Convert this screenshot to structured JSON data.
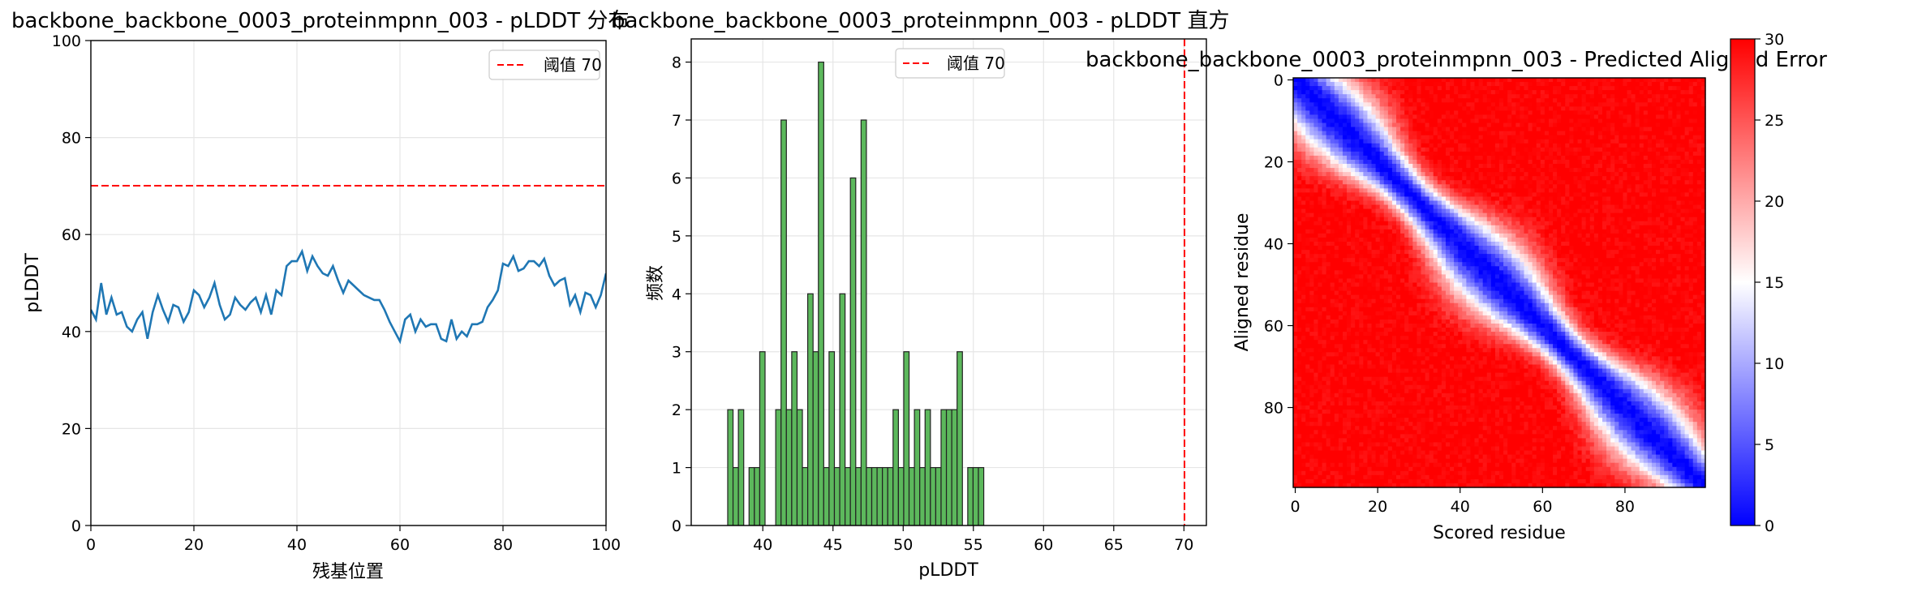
{
  "chart_data": [
    {
      "type": "line",
      "title": "backbone_backbone_0003_proteinmpnn_003 - pLDDT 分布",
      "xlabel": "残基位置",
      "ylabel": "pLDDT",
      "xlim": [
        0,
        100
      ],
      "ylim": [
        0,
        100
      ],
      "xticks": [
        0,
        20,
        40,
        60,
        80,
        100
      ],
      "yticks": [
        0,
        20,
        40,
        60,
        80,
        100
      ],
      "grid": true,
      "legend": {
        "position": "top-right",
        "entries": [
          {
            "label": "阈值 70",
            "color": "#ff0000",
            "style": "dashed"
          }
        ]
      },
      "threshold": 70,
      "series": [
        {
          "color": "#1f77b4",
          "x": [
            0,
            1,
            2,
            3,
            4,
            5,
            6,
            7,
            8,
            9,
            10,
            11,
            12,
            13,
            14,
            15,
            16,
            17,
            18,
            19,
            20,
            21,
            22,
            23,
            24,
            25,
            26,
            27,
            28,
            29,
            30,
            31,
            32,
            33,
            34,
            35,
            36,
            37,
            38,
            39,
            40,
            41,
            42,
            43,
            44,
            45,
            46,
            47,
            48,
            49,
            50,
            51,
            52,
            53,
            54,
            55,
            56,
            57,
            58,
            59,
            60,
            61,
            62,
            63,
            64,
            65,
            66,
            67,
            68,
            69,
            70,
            71,
            72,
            73,
            74,
            75,
            76,
            77,
            78,
            79,
            80,
            81,
            82,
            83,
            84,
            85,
            86,
            87,
            88,
            89,
            90,
            91,
            92,
            93,
            94,
            95,
            96,
            97,
            98,
            99,
            100
          ],
          "values": [
            44.5,
            42.5,
            50.0,
            43.5,
            47.0,
            43.5,
            44.0,
            41.0,
            40.0,
            42.5,
            44.0,
            38.5,
            44.0,
            47.5,
            44.5,
            42.0,
            45.5,
            45.0,
            42.0,
            44.0,
            48.5,
            47.5,
            45.0,
            47.0,
            50.0,
            45.5,
            42.5,
            43.5,
            47.0,
            45.5,
            44.5,
            46.0,
            47.0,
            44.0,
            47.5,
            43.5,
            48.5,
            47.5,
            53.5,
            54.5,
            54.5,
            56.5,
            52.5,
            55.5,
            53.5,
            52.0,
            51.5,
            53.5,
            50.5,
            48.0,
            50.5,
            49.5,
            48.5,
            47.5,
            47.0,
            46.5,
            46.5,
            44.5,
            42.0,
            40.0,
            38.0,
            42.5,
            43.5,
            40.0,
            42.5,
            41.0,
            41.5,
            41.5,
            38.5,
            38.0,
            42.5,
            38.5,
            40.0,
            39.0,
            41.5,
            41.5,
            42.0,
            45.0,
            46.5,
            48.5,
            54.0,
            53.5,
            55.5,
            52.5,
            53.0,
            54.5,
            54.5,
            53.5,
            55.0,
            51.5,
            49.5,
            50.5,
            51.0,
            45.5,
            47.5,
            44.0,
            48.0,
            47.5,
            45.0,
            47.5,
            52.0
          ]
        }
      ]
    },
    {
      "type": "bar",
      "title": "backbone_backbone_0003_proteinmpnn_003 - pLDDT 直方",
      "xlabel": "pLDDT",
      "ylabel": "频数",
      "xlim": [
        34.9,
        71.6
      ],
      "ylim": [
        0,
        8.4
      ],
      "xticks": [
        40,
        45,
        50,
        55,
        60,
        65,
        70
      ],
      "yticks": [
        0,
        1,
        2,
        3,
        4,
        5,
        6,
        7,
        8
      ],
      "grid": true,
      "legend": {
        "position": "top-center",
        "entries": [
          {
            "label": "阈值 70",
            "color": "#ff0000",
            "style": "dashed"
          }
        ]
      },
      "threshold": 70,
      "bar_color": "#5cb85c",
      "bin_width": 0.38,
      "bin_starts": [
        37.5,
        37.88,
        38.26,
        38.64,
        39.02,
        39.4,
        39.78,
        40.16,
        40.54,
        40.92,
        41.3,
        41.68,
        42.06,
        42.44,
        42.82,
        43.2,
        43.58,
        43.96,
        44.34,
        44.72,
        45.1,
        45.48,
        45.86,
        46.24,
        46.62,
        47.0,
        47.38,
        47.76,
        48.14,
        48.52,
        48.9,
        49.28,
        49.66,
        50.04,
        50.42,
        50.8,
        51.18,
        51.56,
        51.94,
        52.32,
        52.7,
        53.08,
        53.46,
        53.84,
        54.22,
        54.6,
        54.98,
        55.36,
        55.74,
        56.12
      ],
      "values": [
        2,
        1,
        2,
        0,
        1,
        1,
        3,
        0,
        0,
        2,
        7,
        2,
        3,
        2,
        1,
        4,
        3,
        8,
        1,
        3,
        1,
        4,
        1,
        6,
        1,
        7,
        1,
        1,
        1,
        1,
        1,
        2,
        1,
        3,
        1,
        2,
        1,
        2,
        1,
        1,
        2,
        2,
        2,
        3,
        0,
        1,
        1,
        1,
        0,
        0
      ]
    },
    {
      "type": "heatmap",
      "title": "backbone_backbone_0003_proteinmpnn_003 - Predicted Aligned Error",
      "xlabel": "Scored residue",
      "ylabel": "Aligned residue",
      "size": 100,
      "xticks": [
        0,
        20,
        40,
        60,
        80
      ],
      "yticks": [
        0,
        20,
        40,
        60,
        80
      ],
      "colormap": "bwr",
      "vmin": 0,
      "vmax": 30,
      "colorbar_ticks": [
        0,
        5,
        10,
        15,
        20,
        25,
        30
      ],
      "description_values": {
        "diagonal_error": 0,
        "near_diagonal_band_width": 10,
        "far_error": 30
      }
    }
  ]
}
